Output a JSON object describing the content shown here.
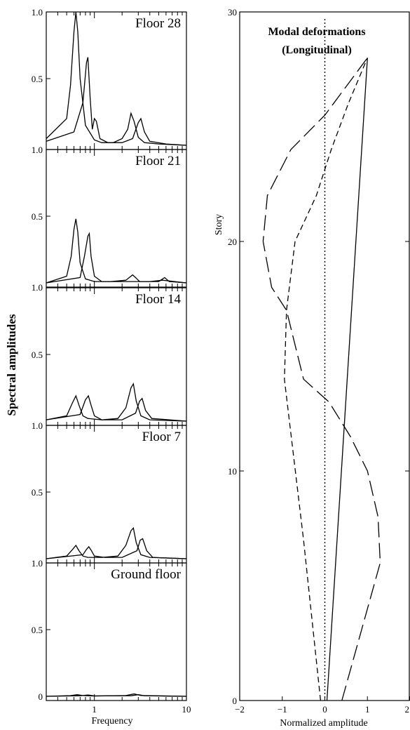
{
  "chart_data": [
    {
      "type": "line",
      "ylabel": "Spectral amplitudes",
      "xlabel": "Frequency",
      "x_scale": "log",
      "xlim": [
        0.3,
        10
      ],
      "x_tick_labels": [
        "1",
        "10"
      ],
      "panels": [
        {
          "label": "Floor 28",
          "y_tick_labels": [
            "1.0",
            "0.5",
            "1.0"
          ],
          "series": [
            {
              "x": [
                0.3,
                0.5,
                0.55,
                0.6,
                0.63,
                0.66,
                0.7,
                0.8,
                1.0,
                1.2,
                1.6,
                2.0,
                2.3,
                2.5,
                2.7,
                3.0,
                3.5,
                5,
                10
              ],
              "values": [
                0.05,
                0.2,
                0.45,
                0.85,
                1.0,
                0.85,
                0.5,
                0.15,
                0.04,
                0.02,
                0.02,
                0.05,
                0.12,
                0.24,
                0.18,
                0.06,
                0.02,
                0.01,
                0.0
              ]
            },
            {
              "x": [
                0.3,
                0.6,
                0.75,
                0.82,
                0.85,
                0.9,
                0.95,
                1.0,
                1.05,
                1.15,
                1.4,
                2.0,
                2.6,
                3.0,
                3.2,
                3.5,
                4.0,
                6,
                10
              ],
              "values": [
                0.03,
                0.1,
                0.32,
                0.62,
                0.66,
                0.35,
                0.12,
                0.2,
                0.18,
                0.05,
                0.02,
                0.02,
                0.05,
                0.17,
                0.2,
                0.1,
                0.03,
                0.01,
                0.0
              ]
            }
          ]
        },
        {
          "label": "Floor 21",
          "y_tick_labels": [
            "0.5",
            "1.0"
          ],
          "series": [
            {
              "x": [
                0.3,
                0.5,
                0.56,
                0.6,
                0.63,
                0.66,
                0.7,
                0.8,
                1.0,
                1.5,
                2.2,
                2.6,
                2.8,
                3.1,
                4,
                5.5,
                10
              ],
              "values": [
                0.0,
                0.05,
                0.2,
                0.4,
                0.48,
                0.38,
                0.15,
                0.03,
                0.01,
                0.01,
                0.02,
                0.06,
                0.04,
                0.01,
                0.01,
                0.02,
                0.0
              ]
            },
            {
              "x": [
                0.3,
                0.7,
                0.78,
                0.85,
                0.88,
                0.92,
                1.0,
                1.2,
                2.0,
                3.0,
                5.0,
                5.8,
                6.5,
                10
              ],
              "values": [
                0.0,
                0.04,
                0.2,
                0.35,
                0.37,
                0.2,
                0.05,
                0.01,
                0.01,
                0.01,
                0.01,
                0.04,
                0.01,
                0.0
              ]
            }
          ]
        },
        {
          "label": "Floor 14",
          "y_tick_labels": [
            "0.5",
            "1.0"
          ],
          "series": [
            {
              "x": [
                0.3,
                0.5,
                0.58,
                0.63,
                0.68,
                0.75,
                0.85,
                1.2,
                1.8,
                2.2,
                2.5,
                2.65,
                2.85,
                3.2,
                4,
                10
              ],
              "values": [
                0.01,
                0.04,
                0.14,
                0.19,
                0.12,
                0.04,
                0.02,
                0.01,
                0.02,
                0.1,
                0.25,
                0.28,
                0.15,
                0.04,
                0.01,
                0.0
              ]
            },
            {
              "x": [
                0.3,
                0.7,
                0.8,
                0.86,
                0.92,
                1.0,
                1.2,
                2.0,
                2.8,
                3.1,
                3.3,
                3.6,
                4.2,
                10
              ],
              "values": [
                0.01,
                0.05,
                0.16,
                0.19,
                0.12,
                0.04,
                0.01,
                0.01,
                0.06,
                0.15,
                0.17,
                0.08,
                0.02,
                0.0
              ]
            }
          ]
        },
        {
          "label": "Floor 7",
          "y_tick_labels": [
            "0.5",
            "1.0"
          ],
          "series": [
            {
              "x": [
                0.3,
                0.5,
                0.58,
                0.63,
                0.68,
                0.75,
                0.85,
                1.2,
                1.8,
                2.2,
                2.5,
                2.65,
                2.85,
                3.2,
                4,
                10
              ],
              "values": [
                0.0,
                0.02,
                0.07,
                0.1,
                0.06,
                0.02,
                0.01,
                0.01,
                0.02,
                0.1,
                0.21,
                0.23,
                0.12,
                0.03,
                0.01,
                0.0
              ]
            },
            {
              "x": [
                0.3,
                0.75,
                0.82,
                0.87,
                0.93,
                1.0,
                1.3,
                2.0,
                2.9,
                3.15,
                3.35,
                3.7,
                4.3,
                10
              ],
              "values": [
                0.0,
                0.03,
                0.07,
                0.09,
                0.06,
                0.02,
                0.01,
                0.01,
                0.06,
                0.14,
                0.15,
                0.06,
                0.01,
                0.0
              ]
            }
          ]
        },
        {
          "label": "Ground floor",
          "y_tick_labels": [
            "0.5",
            "0"
          ],
          "series": [
            {
              "x": [
                0.3,
                0.55,
                0.65,
                0.75,
                1.0,
                2.2,
                2.7,
                3.2,
                10
              ],
              "values": [
                0.0,
                0.005,
                0.012,
                0.006,
                0.002,
                0.006,
                0.018,
                0.006,
                0.0
              ]
            },
            {
              "x": [
                0.3,
                0.7,
                0.85,
                1.0,
                2.5,
                3.0,
                3.5,
                10
              ],
              "values": [
                0.0,
                0.004,
                0.01,
                0.003,
                0.004,
                0.012,
                0.004,
                0.0
              ]
            }
          ]
        }
      ]
    },
    {
      "type": "line",
      "title": "Modal deformations",
      "subtitle": "(Longitudinal)",
      "xlabel": "Normalized amplitude",
      "ylabel": "Story",
      "xlim": [
        -2,
        2
      ],
      "ylim": [
        0,
        30
      ],
      "x_tick_labels": [
        "−2",
        "−1",
        "0",
        "1",
        "2"
      ],
      "y_tick_labels": [
        "0",
        "10",
        "20",
        "30"
      ],
      "reference_line_x": 0,
      "series": [
        {
          "style": "solid",
          "x": [
            0.05,
            1.0
          ],
          "y": [
            0,
            28
          ]
        },
        {
          "style": "short-dash",
          "x": [
            -0.1,
            -0.5,
            -0.95,
            -0.9,
            -0.7,
            -0.2,
            0.15,
            0.55,
            1.0
          ],
          "y": [
            0,
            7,
            14,
            17,
            20,
            22,
            24,
            26,
            28
          ]
        },
        {
          "style": "long-dash",
          "x": [
            0.4,
            1.0,
            1.3,
            1.25,
            1.0,
            0.6,
            0.1,
            -0.5,
            -0.9,
            -1.25,
            -1.45,
            -1.35,
            -0.8,
            0.0,
            0.6,
            1.0
          ],
          "y": [
            0,
            4,
            6,
            8,
            10,
            11.5,
            13,
            14,
            17,
            18,
            20,
            22,
            24,
            25.5,
            27,
            28
          ]
        }
      ]
    }
  ]
}
